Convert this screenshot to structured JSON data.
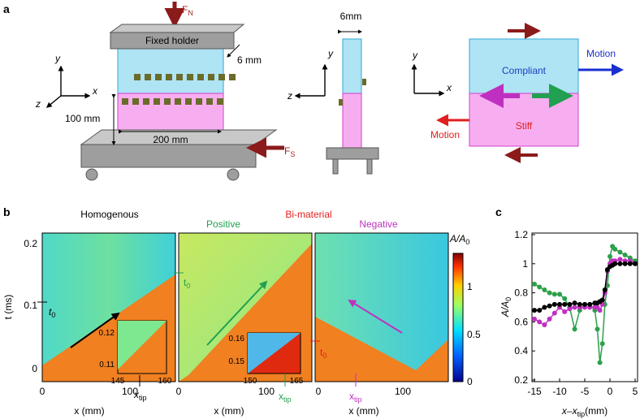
{
  "panel_labels": [
    "a",
    "b",
    "c"
  ],
  "panel_a": {
    "holder": "Fixed holder",
    "force_normal": [
      "F",
      "N"
    ],
    "force_shear": [
      "F",
      "S"
    ],
    "thickness": "6 mm",
    "height": "100 mm",
    "width": "200 mm",
    "axes_left": [
      "y",
      "x",
      "z"
    ],
    "side_width": "6mm",
    "axes_side": [
      "y",
      "z"
    ],
    "axes_right": [
      "y",
      "x"
    ],
    "compliant": "Compliant",
    "stiff": "Stiff",
    "motion_compliant": "Motion",
    "motion_stiff": "Motion"
  },
  "panel_b": {
    "homogenous": "Homogenous",
    "bimaterial": "Bi-material",
    "positive": "Positive",
    "negative": "Negative",
    "y_label": "t (ms)",
    "y_ticks": [
      "0.2",
      "0.1",
      "0"
    ],
    "x_ticks": [
      "0",
      "100"
    ],
    "x_label": "x (mm)",
    "t0": [
      "t",
      "0"
    ],
    "x_tip": [
      "x",
      "tip"
    ],
    "inset_1": {
      "y_ticks": [
        "0.12",
        "0.11"
      ],
      "x_ticks": [
        "145",
        "160"
      ]
    },
    "inset_2": {
      "y_ticks": [
        "0.16",
        "0.15"
      ],
      "x_ticks": [
        "150",
        "165"
      ]
    },
    "colorbar": {
      "label": [
        "A/A",
        "0"
      ],
      "ticks": [
        "1",
        "0.5",
        "0"
      ]
    }
  },
  "chart_data": {
    "type": "line",
    "x": [
      -15,
      -14,
      -13,
      -12,
      -11,
      -10,
      -9,
      -8,
      -7,
      -6,
      -5,
      -4,
      -3,
      -2.5,
      -2,
      -1.5,
      -1,
      -0.5,
      0,
      0.5,
      1,
      2,
      3,
      4,
      5
    ],
    "series": [
      {
        "color": "#2ca04a",
        "values": [
          0.86,
          0.84,
          0.82,
          0.8,
          0.79,
          0.79,
          0.76,
          0.7,
          0.55,
          0.68,
          0.72,
          0.72,
          0.68,
          0.55,
          0.32,
          0.45,
          0.72,
          0.85,
          1.05,
          1.12,
          1.1,
          1.08,
          1.06,
          1.04,
          1.02
        ]
      },
      {
        "color": "#c030c0",
        "values": [
          0.62,
          0.6,
          0.58,
          0.62,
          0.66,
          0.7,
          0.67,
          0.69,
          0.7,
          0.7,
          0.7,
          0.7,
          0.7,
          0.7,
          0.68,
          0.72,
          0.8,
          0.95,
          1.0,
          1.02,
          1.02,
          1.03,
          1.02,
          1.02,
          1.0
        ]
      },
      {
        "color": "#000000",
        "values": [
          0.68,
          0.68,
          0.7,
          0.71,
          0.72,
          0.72,
          0.72,
          0.72,
          0.73,
          0.72,
          0.72,
          0.72,
          0.73,
          0.73,
          0.74,
          0.75,
          0.82,
          0.96,
          0.98,
          0.99,
          1.0,
          1.0,
          1.0,
          1.0,
          1.0
        ]
      }
    ],
    "xlim": [
      -15,
      5
    ],
    "ylim": [
      0.2,
      1.2
    ],
    "xticks": [
      -15,
      -10,
      -5,
      0,
      5
    ],
    "yticks": [
      0.2,
      0.4,
      0.6,
      0.8,
      1,
      1.2
    ],
    "xlabel": [
      "x–x",
      "tip",
      "(mm)"
    ],
    "ylabel": [
      "A/A",
      "0"
    ]
  }
}
